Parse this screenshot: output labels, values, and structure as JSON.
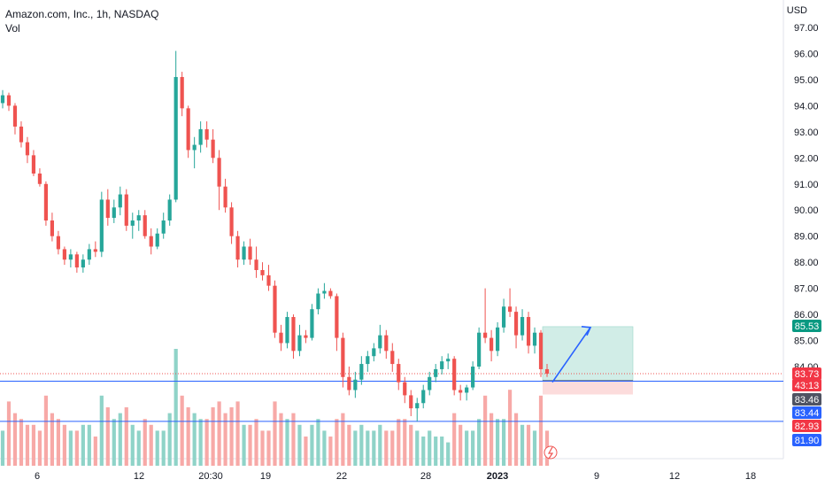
{
  "header": {
    "title": "Amazon.com, Inc., 1h, NASDAQ",
    "volume_label": "Vol"
  },
  "price_axis": {
    "currency": "USD",
    "ticks": [
      "97.00",
      "96.00",
      "95.00",
      "94.00",
      "93.00",
      "92.00",
      "91.00",
      "90.00",
      "89.00",
      "88.00",
      "87.00",
      "86.00",
      "85.00",
      "84.00"
    ],
    "badges": [
      {
        "label": "85.53",
        "color": "#089981",
        "value": 85.53
      },
      {
        "label": "83.73",
        "color": "#f23645",
        "value": 83.73
      },
      {
        "label": "43:13",
        "color": "#f23645",
        "value": 83.38
      },
      {
        "label": "83.46",
        "color": "#4f5362",
        "value": 83.46
      },
      {
        "label": "83.44",
        "color": "#2962ff",
        "value": 83.44
      },
      {
        "label": "82.93",
        "color": "#f23645",
        "value": 82.93
      },
      {
        "label": "81.90",
        "color": "#2962ff",
        "value": 81.9
      }
    ]
  },
  "time_axis": {
    "ticks": [
      "6",
      "12",
      "20:30",
      "19",
      "22",
      "28",
      "2023",
      "9",
      "12",
      "18"
    ]
  },
  "colors": {
    "up": "#26a69a",
    "down": "#ef5350",
    "vol_up": "#8fd3c8",
    "vol_down": "#f7a9a7",
    "blue_line": "#2962ff",
    "target_zone": "#d1ede7",
    "stop_zone": "#fcdcdc"
  },
  "chart_data": {
    "type": "candlestick",
    "title": "Amazon.com, Inc., 1h, NASDAQ",
    "y_unit": "USD",
    "ylim": [
      81.3,
      97.6
    ],
    "grid": false,
    "candles": [
      [
        94.1,
        94.6,
        93.9,
        94.4
      ],
      [
        94.4,
        94.5,
        93.8,
        94.0
      ],
      [
        94.0,
        94.1,
        92.9,
        93.2
      ],
      [
        93.2,
        93.4,
        92.4,
        92.6
      ],
      [
        92.6,
        92.8,
        91.8,
        92.1
      ],
      [
        92.1,
        92.3,
        91.3,
        91.4
      ],
      [
        91.4,
        91.6,
        90.9,
        91.0
      ],
      [
        91.0,
        91.1,
        89.4,
        89.6
      ],
      [
        89.6,
        89.9,
        88.8,
        89.0
      ],
      [
        89.0,
        89.2,
        88.3,
        88.5
      ],
      [
        88.5,
        88.6,
        87.9,
        88.1
      ],
      [
        88.1,
        88.5,
        87.8,
        88.3
      ],
      [
        88.3,
        88.4,
        87.6,
        87.8
      ],
      [
        87.8,
        88.3,
        87.6,
        88.1
      ],
      [
        88.1,
        88.7,
        87.9,
        88.5
      ],
      [
        88.5,
        88.8,
        88.2,
        88.4
      ],
      [
        88.4,
        90.7,
        88.2,
        90.4
      ],
      [
        90.4,
        90.8,
        89.4,
        89.7
      ],
      [
        89.7,
        90.4,
        89.5,
        90.1
      ],
      [
        90.1,
        90.9,
        89.8,
        90.6
      ],
      [
        90.6,
        90.8,
        89.2,
        89.4
      ],
      [
        89.4,
        89.9,
        88.9,
        89.6
      ],
      [
        89.6,
        90.0,
        89.2,
        89.8
      ],
      [
        89.8,
        90.0,
        88.9,
        89.0
      ],
      [
        89.0,
        89.3,
        88.3,
        88.6
      ],
      [
        88.6,
        89.3,
        88.5,
        89.1
      ],
      [
        89.1,
        89.9,
        88.9,
        89.6
      ],
      [
        89.6,
        90.6,
        89.4,
        90.4
      ],
      [
        90.4,
        96.1,
        90.3,
        95.1
      ],
      [
        95.1,
        95.3,
        93.6,
        93.9
      ],
      [
        93.9,
        94.0,
        92.0,
        92.3
      ],
      [
        92.3,
        92.8,
        91.6,
        92.5
      ],
      [
        92.5,
        93.4,
        92.2,
        93.1
      ],
      [
        93.1,
        93.4,
        92.4,
        92.7
      ],
      [
        92.7,
        93.1,
        91.8,
        92.0
      ],
      [
        92.0,
        92.3,
        90.0,
        90.9
      ],
      [
        90.9,
        91.2,
        89.9,
        90.1
      ],
      [
        90.1,
        90.3,
        88.7,
        89.0
      ],
      [
        89.0,
        89.2,
        87.8,
        88.1
      ],
      [
        88.1,
        88.8,
        87.9,
        88.6
      ],
      [
        88.6,
        88.9,
        87.9,
        88.1
      ],
      [
        88.1,
        88.6,
        87.4,
        87.7
      ],
      [
        87.7,
        88.0,
        87.3,
        87.5
      ],
      [
        87.5,
        87.9,
        86.9,
        87.1
      ],
      [
        87.1,
        87.3,
        85.1,
        85.3
      ],
      [
        85.3,
        85.6,
        84.6,
        84.9
      ],
      [
        84.9,
        86.1,
        84.7,
        85.9
      ],
      [
        85.9,
        86.0,
        84.3,
        84.6
      ],
      [
        84.6,
        85.6,
        84.4,
        85.2
      ],
      [
        85.2,
        85.4,
        84.9,
        85.1
      ],
      [
        85.1,
        86.4,
        85.0,
        86.2
      ],
      [
        86.2,
        87.0,
        86.0,
        86.8
      ],
      [
        86.8,
        87.2,
        86.6,
        86.9
      ],
      [
        86.9,
        87.0,
        86.6,
        86.7
      ],
      [
        86.7,
        86.8,
        84.6,
        85.1
      ],
      [
        85.1,
        85.3,
        83.2,
        83.6
      ],
      [
        83.6,
        84.0,
        82.9,
        83.1
      ],
      [
        83.1,
        83.8,
        82.8,
        83.5
      ],
      [
        83.5,
        84.4,
        83.3,
        84.1
      ],
      [
        84.1,
        84.6,
        83.8,
        84.4
      ],
      [
        84.4,
        84.9,
        84.2,
        84.7
      ],
      [
        84.7,
        85.6,
        84.5,
        85.2
      ],
      [
        85.2,
        85.4,
        84.3,
        84.6
      ],
      [
        84.6,
        84.9,
        83.8,
        84.1
      ],
      [
        84.1,
        84.3,
        83.1,
        83.4
      ],
      [
        83.4,
        83.6,
        82.6,
        82.9
      ],
      [
        82.9,
        83.1,
        82.1,
        82.4
      ],
      [
        82.4,
        82.8,
        81.9,
        82.6
      ],
      [
        82.6,
        83.3,
        82.4,
        83.1
      ],
      [
        83.1,
        83.8,
        82.9,
        83.6
      ],
      [
        83.6,
        84.1,
        83.4,
        83.9
      ],
      [
        83.9,
        84.4,
        83.7,
        84.2
      ],
      [
        84.2,
        84.5,
        83.9,
        84.3
      ],
      [
        84.3,
        84.4,
        82.9,
        83.1
      ],
      [
        83.1,
        83.3,
        82.7,
        83.0
      ],
      [
        83.0,
        83.3,
        82.7,
        83.2
      ],
      [
        83.2,
        84.2,
        83.1,
        84.0
      ],
      [
        84.0,
        85.5,
        83.9,
        85.3
      ],
      [
        85.3,
        87.0,
        84.9,
        85.1
      ],
      [
        85.1,
        85.4,
        84.2,
        84.6
      ],
      [
        84.6,
        85.7,
        84.4,
        85.5
      ],
      [
        85.5,
        86.6,
        85.3,
        86.3
      ],
      [
        86.3,
        87.0,
        85.9,
        86.1
      ],
      [
        86.1,
        86.3,
        84.7,
        85.2
      ],
      [
        85.2,
        86.2,
        85.0,
        85.9
      ],
      [
        85.9,
        86.1,
        84.5,
        84.8
      ],
      [
        84.8,
        85.5,
        84.5,
        85.3
      ],
      [
        85.3,
        85.4,
        83.6,
        83.9
      ],
      [
        83.9,
        84.1,
        83.6,
        83.73
      ]
    ],
    "volume_relative": [
      0.3,
      0.55,
      0.45,
      0.4,
      0.35,
      0.35,
      0.3,
      0.6,
      0.45,
      0.4,
      0.35,
      0.3,
      0.3,
      0.35,
      0.35,
      0.25,
      0.6,
      0.5,
      0.4,
      0.45,
      0.5,
      0.35,
      0.3,
      0.4,
      0.35,
      0.3,
      0.3,
      0.45,
      1.0,
      0.6,
      0.5,
      0.45,
      0.4,
      0.4,
      0.5,
      0.55,
      0.45,
      0.5,
      0.55,
      0.35,
      0.35,
      0.4,
      0.3,
      0.3,
      0.55,
      0.45,
      0.4,
      0.45,
      0.35,
      0.25,
      0.35,
      0.4,
      0.3,
      0.25,
      0.4,
      0.45,
      0.35,
      0.3,
      0.35,
      0.3,
      0.3,
      0.35,
      0.3,
      0.3,
      0.4,
      0.4,
      0.35,
      0.3,
      0.25,
      0.3,
      0.25,
      0.25,
      0.2,
      0.45,
      0.35,
      0.3,
      0.3,
      0.4,
      0.6,
      0.45,
      0.4,
      0.4,
      0.65,
      0.45,
      0.35,
      0.35,
      0.3,
      0.6,
      0.3
    ],
    "annotations": {
      "horizontal_lines": [
        83.44,
        81.9
      ],
      "long_position": {
        "entry": 83.46,
        "target": 85.53,
        "stop": 82.93
      },
      "arrow": {
        "from_price": 83.4,
        "to_price": 85.5
      }
    }
  }
}
